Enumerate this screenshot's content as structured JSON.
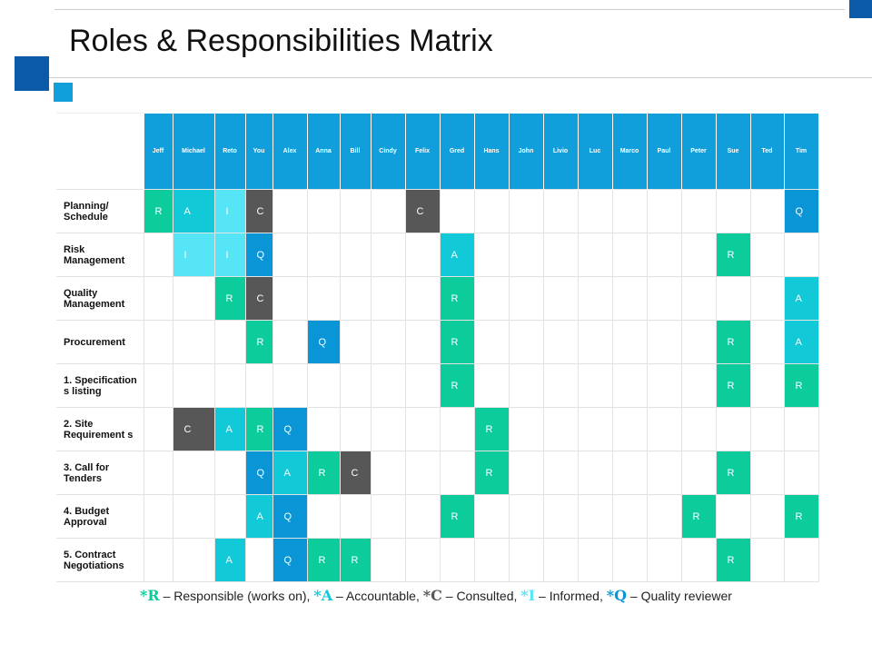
{
  "title": "Roles & Responsibilities Matrix",
  "colors": {
    "R": "#0ccc9c",
    "A": "#12c9d7",
    "C": "#575757",
    "I": "#55e5f6",
    "Q": "#0a96d6",
    "header": "#119fdb",
    "accent_dark": "#0b5aa8",
    "accent_light": "#119fdb"
  },
  "people": [
    "Jeff",
    "Michael",
    "Reto",
    "You",
    "Alex",
    "Anna",
    "Bill",
    "Cindy",
    "Felix",
    "Gred",
    "Hans",
    "John",
    "Livio",
    "Luc",
    "Marco",
    "Paul",
    "Peter",
    "Sue",
    "Ted",
    "Tim"
  ],
  "rows": [
    {
      "label": "Planning/ Schedule",
      "cells": [
        "R",
        "A",
        "I",
        "C",
        "",
        "",
        "",
        "",
        "C",
        "",
        "",
        "",
        "",
        "",
        "",
        "",
        "",
        "",
        "",
        "Q"
      ]
    },
    {
      "label": "Risk Management",
      "cells": [
        "",
        "I",
        "I",
        "Q",
        "",
        "",
        "",
        "",
        "",
        "A",
        "",
        "",
        "",
        "",
        "",
        "",
        "",
        "R",
        "",
        ""
      ]
    },
    {
      "label": "Quality Management",
      "cells": [
        "",
        "",
        "R",
        "C",
        "",
        "",
        "",
        "",
        "",
        "R",
        "",
        "",
        "",
        "",
        "",
        "",
        "",
        "",
        "",
        "A"
      ]
    },
    {
      "label": "Procurement",
      "cells": [
        "",
        "",
        "",
        "R",
        "",
        "Q",
        "",
        "",
        "",
        "R",
        "",
        "",
        "",
        "",
        "",
        "",
        "",
        "R",
        "",
        "A"
      ]
    },
    {
      "label": "1. Specification s listing",
      "cells": [
        "",
        "",
        "",
        "",
        "",
        "",
        "",
        "",
        "",
        "R",
        "",
        "",
        "",
        "",
        "",
        "",
        "",
        "R",
        "",
        "R"
      ]
    },
    {
      "label": "2. Site Requirement s",
      "cells": [
        "",
        "C",
        "A",
        "R",
        "Q",
        "",
        "",
        "",
        "",
        "",
        "R",
        "",
        "",
        "",
        "",
        "",
        "",
        "",
        "",
        ""
      ]
    },
    {
      "label": "3. Call for Tenders",
      "cells": [
        "",
        "",
        "",
        "Q",
        "A",
        "R",
        "C",
        "",
        "",
        "",
        "R",
        "",
        "",
        "",
        "",
        "",
        "",
        "R",
        "",
        ""
      ]
    },
    {
      "label": "4. Budget Approval",
      "cells": [
        "",
        "",
        "",
        "A",
        "Q",
        "",
        "",
        "",
        "",
        "R",
        "",
        "",
        "",
        "",
        "",
        "",
        "R",
        "",
        "",
        "R"
      ]
    },
    {
      "label": "5. Contract Negotiations",
      "cells": [
        "",
        "",
        "A",
        "",
        "Q",
        "R",
        "R",
        "",
        "",
        "",
        "",
        "",
        "",
        "",
        "",
        "",
        "",
        "R",
        "",
        ""
      ]
    }
  ],
  "legend": [
    {
      "key": "*R",
      "text": " – Responsible (works on),"
    },
    {
      "key": "*A",
      "text": " – Accountable,"
    },
    {
      "key": "*C",
      "text": " – Consulted,"
    },
    {
      "key": "*I",
      "text": " – Informed,"
    },
    {
      "key": "*Q",
      "text": " – Quality reviewer"
    }
  ]
}
